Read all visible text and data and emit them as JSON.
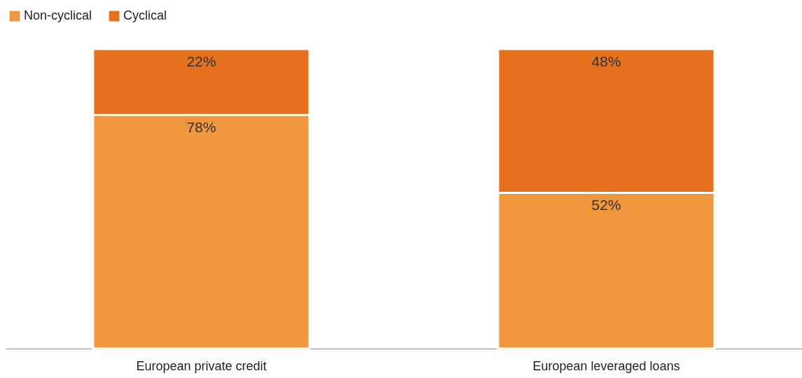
{
  "chart_data": {
    "type": "bar",
    "stacked": true,
    "categories": [
      "European private credit",
      "European leveraged loans"
    ],
    "legend": "top left",
    "series": [
      {
        "name": "Non-cyclical",
        "color": "#f0963c",
        "values": [
          78,
          52
        ],
        "value_labels": [
          "78%",
          "52%"
        ]
      },
      {
        "name": "Cyclical",
        "color": "#e5701e",
        "values": [
          22,
          48
        ],
        "value_labels": [
          "22%",
          "48%"
        ]
      }
    ]
  }
}
